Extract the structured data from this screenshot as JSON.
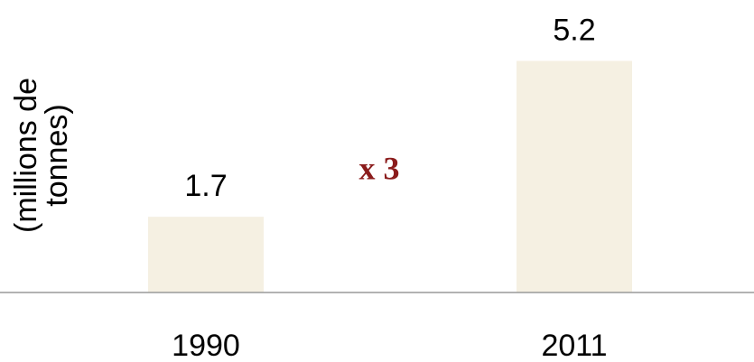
{
  "chart_data": {
    "type": "bar",
    "y_label": [
      "(millions de",
      "tonnes)"
    ],
    "categories": [
      "1990",
      "2011"
    ],
    "values": [
      1.7,
      5.2
    ],
    "color": "#f5f0e2",
    "ylim": [
      0,
      6
    ],
    "annotation": "x 3"
  }
}
